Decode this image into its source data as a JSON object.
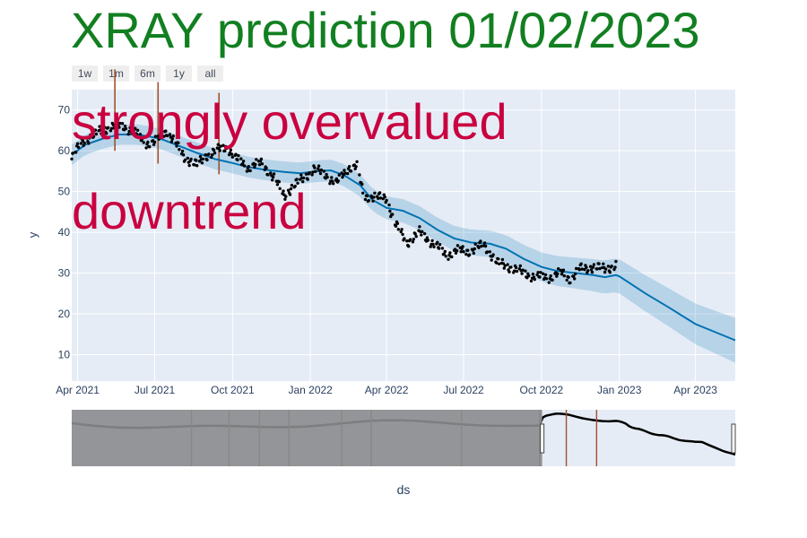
{
  "title": "XRAY prediction 01/02/2023",
  "range_buttons": [
    "1w",
    "1m",
    "6m",
    "1y",
    "all"
  ],
  "annotations": [
    "strongly overvalued",
    "downtrend"
  ],
  "chart_data": {
    "type": "line",
    "xlabel": "ds",
    "ylabel": "y",
    "x_range": [
      "2021-03-25",
      "2023-05-18"
    ],
    "y_range": [
      3.5,
      75
    ],
    "x_tick_labels": [
      "Apr 2021",
      "Jul 2021",
      "Oct 2021",
      "Jan 2022",
      "Apr 2022",
      "Jul 2022",
      "Oct 2022",
      "Jan 2023",
      "Apr 2023"
    ],
    "x_tick_dates": [
      "2021-04-01",
      "2021-07-01",
      "2021-10-01",
      "2022-01-01",
      "2022-04-01",
      "2022-07-01",
      "2022-10-01",
      "2023-01-01",
      "2023-04-01"
    ],
    "y_tick_values": [
      10,
      20,
      30,
      40,
      50,
      60,
      70
    ],
    "series": [
      {
        "kind": "forecast-line",
        "color": "#0072b2",
        "points": [
          [
            "2021-03-25",
            59
          ],
          [
            "2021-04-10",
            61.5
          ],
          [
            "2021-05-01",
            63
          ],
          [
            "2021-05-20",
            64
          ],
          [
            "2021-06-10",
            64
          ],
          [
            "2021-06-25",
            63.5
          ],
          [
            "2021-07-10",
            62.8
          ],
          [
            "2021-08-01",
            61
          ],
          [
            "2021-08-20",
            59.5
          ],
          [
            "2021-09-10",
            58
          ],
          [
            "2021-10-01",
            57
          ],
          [
            "2021-10-20",
            56
          ],
          [
            "2021-11-10",
            55.3
          ],
          [
            "2021-12-01",
            54.8
          ],
          [
            "2021-12-20",
            54.5
          ],
          [
            "2022-01-10",
            55
          ],
          [
            "2022-01-25",
            55.2
          ],
          [
            "2022-02-10",
            54
          ],
          [
            "2022-03-01",
            51.5
          ],
          [
            "2022-03-15",
            48
          ],
          [
            "2022-04-01",
            46
          ],
          [
            "2022-04-20",
            45.3
          ],
          [
            "2022-05-10",
            43.5
          ],
          [
            "2022-06-01",
            40.5
          ],
          [
            "2022-06-20",
            38.5
          ],
          [
            "2022-07-10",
            37.5
          ],
          [
            "2022-08-01",
            37.2
          ],
          [
            "2022-08-20",
            36
          ],
          [
            "2022-09-10",
            33.5
          ],
          [
            "2022-10-01",
            31.5
          ],
          [
            "2022-10-20",
            30.5
          ],
          [
            "2022-11-10",
            30
          ],
          [
            "2022-12-01",
            29.5
          ],
          [
            "2022-12-15",
            29
          ],
          [
            "2022-12-28",
            29.5
          ],
          [
            "2023-01-01",
            29.2
          ],
          [
            "2023-02-01",
            25
          ],
          [
            "2023-03-01",
            21.5
          ],
          [
            "2023-04-01",
            17.5
          ],
          [
            "2023-05-18",
            13.5
          ]
        ]
      },
      {
        "kind": "uncertainty-band",
        "color": "#0072b2",
        "opacity": 0.2,
        "half_width_start": 2.5,
        "half_width_end": 5.5
      },
      {
        "kind": "observed-points",
        "color": "#000000",
        "x_start": "2021-03-25",
        "x_end": "2022-12-28",
        "anchors": [
          [
            "2021-03-25",
            58
          ],
          [
            "2021-04-05",
            62
          ],
          [
            "2021-04-25",
            64.5
          ],
          [
            "2021-05-10",
            66
          ],
          [
            "2021-05-25",
            66
          ],
          [
            "2021-06-05",
            65
          ],
          [
            "2021-06-20",
            62
          ],
          [
            "2021-07-01",
            62
          ],
          [
            "2021-07-15",
            65
          ],
          [
            "2021-07-25",
            62
          ],
          [
            "2021-08-05",
            58.5
          ],
          [
            "2021-08-20",
            56.5
          ],
          [
            "2021-09-01",
            59
          ],
          [
            "2021-09-12",
            60
          ],
          [
            "2021-09-25",
            61
          ],
          [
            "2021-10-05",
            58
          ],
          [
            "2021-10-20",
            56
          ],
          [
            "2021-11-05",
            57
          ],
          [
            "2021-11-20",
            53
          ],
          [
            "2021-12-01",
            49
          ],
          [
            "2021-12-10",
            51
          ],
          [
            "2021-12-25",
            53.5
          ],
          [
            "2022-01-05",
            55.5
          ],
          [
            "2022-01-20",
            54
          ],
          [
            "2022-02-01",
            52
          ],
          [
            "2022-02-15",
            56
          ],
          [
            "2022-02-25",
            56
          ],
          [
            "2022-03-05",
            49
          ],
          [
            "2022-03-20",
            48.5
          ],
          [
            "2022-04-01",
            48.5
          ],
          [
            "2022-04-10",
            42.5
          ],
          [
            "2022-04-25",
            37.5
          ],
          [
            "2022-05-10",
            40
          ],
          [
            "2022-05-25",
            37.5
          ],
          [
            "2022-06-10",
            34.5
          ],
          [
            "2022-06-25",
            35.5
          ],
          [
            "2022-07-10",
            35.5
          ],
          [
            "2022-07-25",
            37
          ],
          [
            "2022-08-10",
            32.5
          ],
          [
            "2022-08-25",
            31.5
          ],
          [
            "2022-09-10",
            30
          ],
          [
            "2022-09-25",
            29
          ],
          [
            "2022-10-10",
            29
          ],
          [
            "2022-10-25",
            30
          ],
          [
            "2022-11-05",
            28.5
          ],
          [
            "2022-11-15",
            31
          ],
          [
            "2022-12-01",
            31.5
          ],
          [
            "2022-12-15",
            31
          ],
          [
            "2022-12-28",
            32
          ]
        ]
      },
      {
        "kind": "changepoint-markers",
        "color": "#a0522d",
        "main_dates": [
          "2021-05-15",
          "2021-07-05",
          "2021-09-15"
        ],
        "rangeslider_positions": [
          "2017-05-01",
          "2017-10-01",
          "2018-02-01",
          "2018-06-01",
          "2019-01-01",
          "2019-05-01",
          "2020-05-01",
          "2021-03-15",
          "2021-07-01",
          "2021-11-01"
        ]
      }
    ],
    "rangeslider": {
      "full_range": [
        "2016-01-01",
        "2023-05-18"
      ],
      "selected_range": [
        "2021-03-25",
        "2023-05-18"
      ]
    }
  }
}
